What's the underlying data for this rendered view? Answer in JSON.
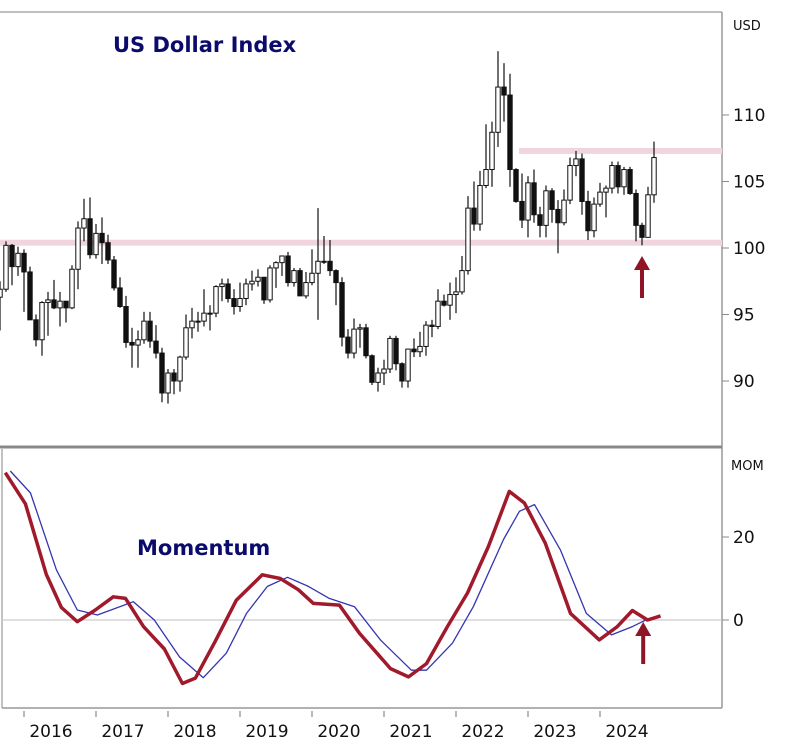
{
  "chart_data": [
    {
      "type": "candlestick",
      "title": "US Dollar Index",
      "ylabel": "USD",
      "ylim": [
        86,
        117
      ],
      "yticks": [
        "90",
        "95",
        "100",
        "105",
        "110"
      ],
      "xticks": [
        "2016",
        "2017",
        "2018",
        "2019",
        "2020",
        "2021",
        "2022",
        "2023",
        "2024"
      ],
      "grid": false,
      "colors": {
        "up": "#ffffff",
        "down": "#111111",
        "band": "#f0d6dc",
        "arrow": "#8e1426"
      },
      "horizontal_bands": [
        {
          "value": 100.4,
          "from": "2015-10",
          "to": "2024-11"
        },
        {
          "value": 107.3,
          "from": "2023-01",
          "to": "2024-11"
        }
      ],
      "arrow_at": {
        "date": "2024-09",
        "direction": "up"
      },
      "ohlc_columns": [
        "month",
        "open",
        "high",
        "low",
        "close"
      ],
      "ohlc": [
        [
          "2015-10",
          96.3,
          97.5,
          93.8,
          96.9
        ],
        [
          "2015-11",
          96.9,
          100.5,
          96.7,
          100.2
        ],
        [
          "2015-12",
          100.2,
          100.3,
          97.2,
          98.6
        ],
        [
          "2016-01",
          98.6,
          100.1,
          97.9,
          99.6
        ],
        [
          "2016-02",
          99.6,
          99.9,
          95.2,
          98.2
        ],
        [
          "2016-03",
          98.2,
          98.6,
          94.6,
          94.6
        ],
        [
          "2016-04",
          94.6,
          95.0,
          92.6,
          93.1
        ],
        [
          "2016-05",
          93.1,
          96.0,
          91.9,
          95.9
        ],
        [
          "2016-06",
          95.9,
          96.7,
          93.4,
          96.1
        ],
        [
          "2016-07",
          96.1,
          97.6,
          95.4,
          95.5
        ],
        [
          "2016-08",
          95.5,
          96.7,
          94.1,
          96.0
        ],
        [
          "2016-09",
          96.0,
          96.0,
          94.4,
          95.5
        ],
        [
          "2016-10",
          95.5,
          98.7,
          95.4,
          98.4
        ],
        [
          "2016-11",
          98.4,
          102.0,
          96.9,
          101.5
        ],
        [
          "2016-12",
          101.5,
          103.7,
          100.5,
          102.2
        ],
        [
          "2017-01",
          102.2,
          103.8,
          99.2,
          99.5
        ],
        [
          "2017-02",
          99.5,
          101.8,
          99.2,
          101.1
        ],
        [
          "2017-03",
          101.1,
          102.3,
          98.8,
          100.4
        ],
        [
          "2017-04",
          100.4,
          101.0,
          98.8,
          99.1
        ],
        [
          "2017-05",
          99.1,
          99.4,
          96.8,
          97.0
        ],
        [
          "2017-06",
          97.0,
          97.8,
          95.5,
          95.6
        ],
        [
          "2017-07",
          95.6,
          96.4,
          92.5,
          92.9
        ],
        [
          "2017-08",
          92.9,
          94.0,
          91.0,
          92.7
        ],
        [
          "2017-09",
          92.7,
          93.8,
          91.0,
          93.1
        ],
        [
          "2017-10",
          93.1,
          95.2,
          92.8,
          94.5
        ],
        [
          "2017-11",
          94.5,
          95.2,
          92.5,
          93.0
        ],
        [
          "2017-12",
          93.0,
          94.2,
          91.7,
          92.1
        ],
        [
          "2018-01",
          92.1,
          92.5,
          88.4,
          89.1
        ],
        [
          "2018-02",
          89.1,
          90.9,
          88.3,
          90.6
        ],
        [
          "2018-03",
          90.6,
          90.9,
          89.0,
          90.0
        ],
        [
          "2018-04",
          90.0,
          91.9,
          89.2,
          91.8
        ],
        [
          "2018-05",
          91.8,
          95.0,
          91.6,
          94.0
        ],
        [
          "2018-06",
          94.0,
          95.5,
          93.2,
          94.5
        ],
        [
          "2018-07",
          94.5,
          95.2,
          93.7,
          94.5
        ],
        [
          "2018-08",
          94.5,
          96.9,
          94.1,
          95.1
        ],
        [
          "2018-09",
          95.1,
          95.7,
          93.8,
          95.1
        ],
        [
          "2018-10",
          95.1,
          97.2,
          94.8,
          97.1
        ],
        [
          "2018-11",
          97.1,
          97.7,
          96.0,
          97.3
        ],
        [
          "2018-12",
          97.3,
          97.7,
          95.9,
          96.2
        ],
        [
          "2019-01",
          96.2,
          96.9,
          95.0,
          95.6
        ],
        [
          "2019-02",
          95.6,
          97.4,
          95.2,
          96.2
        ],
        [
          "2019-03",
          96.2,
          97.7,
          95.7,
          97.3
        ],
        [
          "2019-04",
          97.3,
          98.3,
          96.8,
          97.5
        ],
        [
          "2019-05",
          97.5,
          98.4,
          97.1,
          97.8
        ],
        [
          "2019-06",
          97.8,
          97.8,
          95.8,
          96.1
        ],
        [
          "2019-07",
          96.1,
          98.7,
          95.9,
          98.5
        ],
        [
          "2019-08",
          98.5,
          99.0,
          97.0,
          98.9
        ],
        [
          "2019-09",
          98.9,
          99.4,
          97.9,
          99.4
        ],
        [
          "2019-10",
          99.4,
          99.7,
          97.1,
          97.4
        ],
        [
          "2019-11",
          97.4,
          98.5,
          97.1,
          98.3
        ],
        [
          "2019-12",
          98.3,
          98.5,
          96.4,
          96.4
        ],
        [
          "2020-01",
          96.4,
          98.2,
          96.2,
          97.4
        ],
        [
          "2020-02",
          97.4,
          99.9,
          97.2,
          98.1
        ],
        [
          "2020-03",
          98.1,
          103.0,
          94.6,
          99.0
        ],
        [
          "2020-04",
          99.0,
          100.9,
          98.8,
          99.0
        ],
        [
          "2020-05",
          99.0,
          100.6,
          97.9,
          98.3
        ],
        [
          "2020-06",
          98.3,
          98.4,
          95.7,
          97.4
        ],
        [
          "2020-07",
          97.4,
          97.8,
          92.6,
          93.3
        ],
        [
          "2020-08",
          93.3,
          93.9,
          91.7,
          92.1
        ],
        [
          "2020-09",
          92.1,
          94.7,
          91.7,
          93.9
        ],
        [
          "2020-10",
          93.9,
          94.3,
          92.5,
          94.0
        ],
        [
          "2020-11",
          94.0,
          94.3,
          91.7,
          91.9
        ],
        [
          "2020-12",
          91.9,
          92.0,
          89.7,
          89.9
        ],
        [
          "2021-01",
          89.9,
          91.0,
          89.2,
          90.6
        ],
        [
          "2021-02",
          90.6,
          91.6,
          89.7,
          90.9
        ],
        [
          "2021-03",
          90.9,
          93.4,
          90.6,
          93.2
        ],
        [
          "2021-04",
          93.2,
          93.4,
          90.8,
          91.3
        ],
        [
          "2021-05",
          91.3,
          91.4,
          89.5,
          90.0
        ],
        [
          "2021-06",
          90.0,
          92.4,
          89.5,
          92.4
        ],
        [
          "2021-07",
          92.4,
          93.2,
          91.8,
          92.2
        ],
        [
          "2021-08",
          92.2,
          93.7,
          91.8,
          92.6
        ],
        [
          "2021-09",
          92.6,
          94.5,
          91.9,
          94.2
        ],
        [
          "2021-10",
          94.2,
          94.6,
          93.3,
          94.1
        ],
        [
          "2021-11",
          94.1,
          96.9,
          93.9,
          96.0
        ],
        [
          "2021-12",
          96.0,
          96.5,
          95.6,
          95.7
        ],
        [
          "2022-01",
          95.7,
          97.4,
          94.6,
          96.5
        ],
        [
          "2022-02",
          96.5,
          97.8,
          95.1,
          96.7
        ],
        [
          "2022-03",
          96.7,
          99.4,
          96.5,
          98.3
        ],
        [
          "2022-04",
          98.3,
          103.9,
          98.0,
          103.0
        ],
        [
          "2022-05",
          103.0,
          105.0,
          101.3,
          101.8
        ],
        [
          "2022-06",
          101.8,
          105.8,
          101.3,
          104.7
        ],
        [
          "2022-07",
          104.7,
          109.3,
          104.5,
          105.9
        ],
        [
          "2022-08",
          105.9,
          109.5,
          104.6,
          108.7
        ],
        [
          "2022-09",
          108.7,
          114.8,
          107.6,
          112.1
        ],
        [
          "2022-10",
          112.1,
          113.9,
          109.5,
          111.5
        ],
        [
          "2022-11",
          111.5,
          113.1,
          104.6,
          105.9
        ],
        [
          "2022-12",
          105.9,
          106.0,
          103.4,
          103.5
        ],
        [
          "2023-01",
          103.5,
          105.6,
          101.5,
          102.1
        ],
        [
          "2023-02",
          102.1,
          105.4,
          100.8,
          104.9
        ],
        [
          "2023-03",
          104.9,
          105.9,
          101.9,
          102.5
        ],
        [
          "2023-04",
          102.5,
          103.1,
          100.8,
          101.7
        ],
        [
          "2023-05",
          101.7,
          104.7,
          100.8,
          104.3
        ],
        [
          "2023-06",
          104.3,
          104.5,
          101.9,
          102.9
        ],
        [
          "2023-07",
          102.9,
          103.6,
          99.6,
          101.9
        ],
        [
          "2023-08",
          101.9,
          104.4,
          101.7,
          103.6
        ],
        [
          "2023-09",
          103.6,
          106.8,
          103.3,
          106.2
        ],
        [
          "2023-10",
          106.2,
          107.3,
          105.4,
          106.7
        ],
        [
          "2023-11",
          106.7,
          107.1,
          102.5,
          103.5
        ],
        [
          "2023-12",
          103.5,
          104.3,
          100.6,
          101.3
        ],
        [
          "2024-01",
          101.3,
          103.8,
          100.8,
          103.3
        ],
        [
          "2024-02",
          103.3,
          104.9,
          103.1,
          104.2
        ],
        [
          "2024-03",
          104.2,
          104.7,
          102.3,
          104.5
        ],
        [
          "2024-04",
          104.5,
          106.5,
          104.1,
          106.2
        ],
        [
          "2024-05",
          106.2,
          106.5,
          104.1,
          104.6
        ],
        [
          "2024-06",
          104.6,
          106.1,
          104.0,
          105.9
        ],
        [
          "2024-07",
          105.9,
          106.1,
          104.0,
          104.1
        ],
        [
          "2024-08",
          104.1,
          104.4,
          100.5,
          101.7
        ],
        [
          "2024-09",
          101.7,
          101.9,
          100.2,
          100.8
        ],
        [
          "2024-10",
          100.8,
          104.6,
          100.8,
          104.0
        ],
        [
          "2024-11",
          104.0,
          108.0,
          103.4,
          106.8
        ]
      ]
    },
    {
      "type": "line",
      "title": "Momentum",
      "ylabel": "MOM",
      "ylim": [
        -21,
        41
      ],
      "yticks": [
        "0",
        "20"
      ],
      "zero_line": true,
      "grid": false,
      "arrow_at": {
        "x": 2024.6,
        "direction": "up"
      },
      "series": [
        {
          "color": "#a01a2c",
          "x": [
            2015.74,
            2016.02,
            2016.31,
            2016.52,
            2016.74,
            2016.99,
            2017.24,
            2017.41,
            2017.66,
            2017.95,
            2018.2,
            2018.38,
            2018.66,
            2018.95,
            2019.31,
            2019.56,
            2019.81,
            2020.02,
            2020.38,
            2020.66,
            2021.09,
            2021.34,
            2021.59,
            2021.88,
            2022.16,
            2022.45,
            2022.74,
            2022.95,
            2023.24,
            2023.59,
            2023.99,
            2024.24,
            2024.45,
            2024.66,
            2024.84
          ],
          "y": [
            35.5,
            28,
            11,
            3,
            -0.4,
            2.4,
            5.6,
            5.2,
            -1.6,
            -7,
            -15.3,
            -14,
            -5,
            4.8,
            10.9,
            10,
            7.3,
            4,
            3.6,
            -3.2,
            -11.7,
            -13.7,
            -10.5,
            -1.6,
            6.5,
            17.7,
            31,
            28.2,
            18.5,
            1.6,
            -4.8,
            -1.6,
            2.3,
            0,
            1
          ]
        },
        {
          "color": "#3535b0",
          "x": [
            2015.81,
            2016.09,
            2016.45,
            2016.74,
            2017.02,
            2017.52,
            2017.81,
            2018.16,
            2018.49,
            2018.81,
            2019.09,
            2019.38,
            2019.66,
            2019.95,
            2020.24,
            2020.59,
            2020.95,
            2021.38,
            2021.59,
            2021.95,
            2022.24,
            2022.66,
            2022.88,
            2023.09,
            2023.45,
            2023.81,
            2024.16,
            2024.45,
            2024.66,
            2024.84
          ],
          "y": [
            35.9,
            30.6,
            12.1,
            2.4,
            1.2,
            4.4,
            0,
            -8.9,
            -13.9,
            -8,
            1.6,
            8.1,
            10.3,
            8.1,
            5.2,
            3.2,
            -4.8,
            -12.1,
            -12.1,
            -5.6,
            3.2,
            19.4,
            26.2,
            27.8,
            16.9,
            1.6,
            -3.6,
            -1.6,
            0.2,
            1
          ]
        }
      ]
    }
  ]
}
